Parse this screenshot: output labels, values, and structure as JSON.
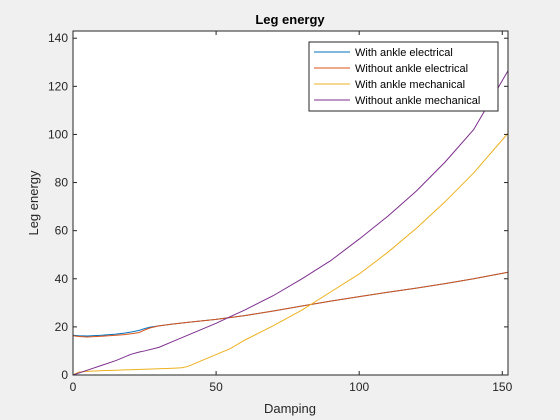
{
  "chart_data": {
    "type": "line",
    "title": "Leg energy",
    "xlabel": "Damping",
    "ylabel": "Leg energy",
    "xlim": [
      0,
      152
    ],
    "ylim": [
      0,
      143
    ],
    "xticks": [
      0,
      50,
      100,
      150
    ],
    "yticks": [
      0,
      20,
      40,
      60,
      80,
      100,
      120,
      140
    ],
    "grid": false,
    "legend_position": "top-right",
    "series": [
      {
        "name": "With ankle electrical",
        "color": "#0072bd",
        "x": [
          0,
          2,
          5,
          10,
          15,
          18,
          20,
          23,
          25,
          27,
          30,
          35,
          40,
          45,
          50,
          60,
          70,
          80,
          90,
          100,
          110,
          120,
          130,
          140,
          152
        ],
        "y": [
          16.5,
          16.3,
          16.2,
          16.5,
          17.0,
          17.4,
          17.8,
          18.5,
          19.3,
          19.9,
          20.4,
          21.2,
          21.9,
          22.5,
          23.1,
          24.7,
          26.6,
          28.7,
          30.7,
          32.6,
          34.4,
          36.1,
          38.0,
          40.0,
          42.7
        ]
      },
      {
        "name": "Without ankle electrical",
        "color": "#d95319",
        "x": [
          0,
          2,
          5,
          10,
          15,
          18,
          20,
          23,
          25,
          27,
          30,
          35,
          40,
          45,
          50,
          60,
          70,
          80,
          90,
          100,
          110,
          120,
          130,
          140,
          152
        ],
        "y": [
          16.3,
          16.0,
          15.8,
          16.1,
          16.5,
          16.8,
          17.1,
          17.6,
          18.7,
          19.6,
          20.4,
          21.2,
          21.9,
          22.5,
          23.1,
          24.7,
          26.6,
          28.7,
          30.7,
          32.6,
          34.4,
          36.1,
          38.0,
          40.0,
          42.7
        ]
      },
      {
        "name": "With ankle mechanical",
        "color": "#edb120",
        "x": [
          0,
          2,
          5,
          10,
          15,
          20,
          25,
          30,
          35,
          38,
          40,
          42,
          45,
          50,
          55,
          60,
          70,
          80,
          90,
          100,
          110,
          120,
          130,
          140,
          152
        ],
        "y": [
          0,
          1.2,
          1.5,
          1.8,
          2.0,
          2.2,
          2.4,
          2.6,
          2.8,
          3.0,
          3.5,
          4.5,
          6.0,
          8.5,
          11.0,
          14.5,
          20.5,
          27.0,
          34.5,
          42.0,
          51.0,
          61.0,
          72.0,
          84.0,
          100.5
        ]
      },
      {
        "name": "Without ankle mechanical",
        "color": "#7e2f8e",
        "x": [
          0,
          5,
          10,
          15,
          20,
          23,
          25,
          30,
          35,
          40,
          45,
          50,
          55,
          60,
          70,
          80,
          90,
          100,
          110,
          120,
          130,
          140,
          152
        ],
        "y": [
          0,
          2.0,
          4.0,
          6.0,
          8.5,
          9.5,
          10.0,
          11.5,
          14.0,
          16.5,
          19.0,
          21.5,
          24.3,
          27.0,
          33.0,
          40.0,
          47.5,
          56.5,
          66.0,
          76.5,
          88.5,
          102.0,
          126.5
        ]
      }
    ]
  }
}
